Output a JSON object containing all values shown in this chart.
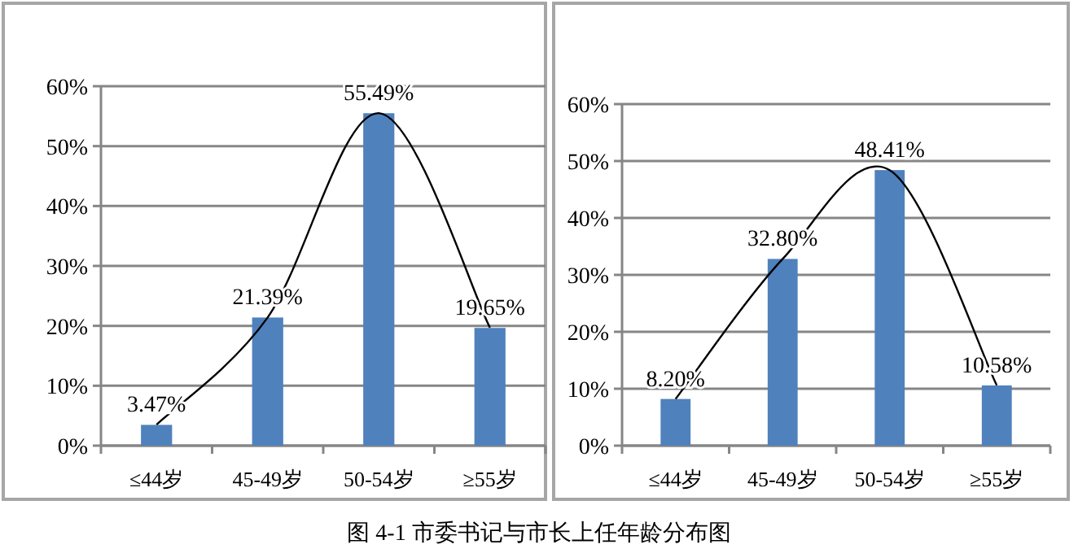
{
  "chart_data": [
    {
      "type": "bar",
      "categories": [
        "≤44岁",
        "45-49岁",
        "50-54岁",
        "≥55岁"
      ],
      "ylim": [
        0,
        60
      ],
      "yticks": [
        {
          "value": 0,
          "label": "0%"
        },
        {
          "value": 10,
          "label": "10%"
        },
        {
          "value": 20,
          "label": "20%"
        },
        {
          "value": 30,
          "label": "30%"
        },
        {
          "value": 40,
          "label": "40%"
        },
        {
          "value": 50,
          "label": "50%"
        },
        {
          "value": 60,
          "label": "60%"
        }
      ],
      "grid": "y",
      "series": [
        {
          "color": "#4f81bd",
          "values": [
            3.47,
            21.39,
            55.49,
            19.65
          ],
          "value_labels": [
            "3.47%",
            "21.39%",
            "55.49%",
            "19.65%"
          ]
        },
        {
          "type": "line",
          "color": "#000000",
          "values": [
            3.5,
            21.4,
            55.5,
            19.7
          ]
        }
      ],
      "annotations": [
        "图 4-1  市委书记与市长上任年龄分布图"
      ]
    },
    {
      "type": "bar",
      "categories": [
        "≤44岁",
        "45-49岁",
        "50-54岁",
        "≥55岁"
      ],
      "ylim": [
        0,
        60
      ],
      "yticks": [
        {
          "value": 0,
          "label": "0%"
        },
        {
          "value": 10,
          "label": "10%"
        },
        {
          "value": 20,
          "label": "20%"
        },
        {
          "value": 30,
          "label": "30%"
        },
        {
          "value": 40,
          "label": "40%"
        },
        {
          "value": 50,
          "label": "50%"
        },
        {
          "value": 60,
          "label": "60%"
        }
      ],
      "grid": "y",
      "series": [
        {
          "color": "#4f81bd",
          "values": [
            8.2,
            32.8,
            48.41,
            10.58
          ],
          "value_labels": [
            "8.20%",
            "32.80%",
            "48.41%",
            "10.58%"
          ]
        },
        {
          "type": "line",
          "color": "#000000",
          "values": [
            8.2,
            32.8,
            48.4,
            10.6
          ]
        }
      ]
    }
  ]
}
